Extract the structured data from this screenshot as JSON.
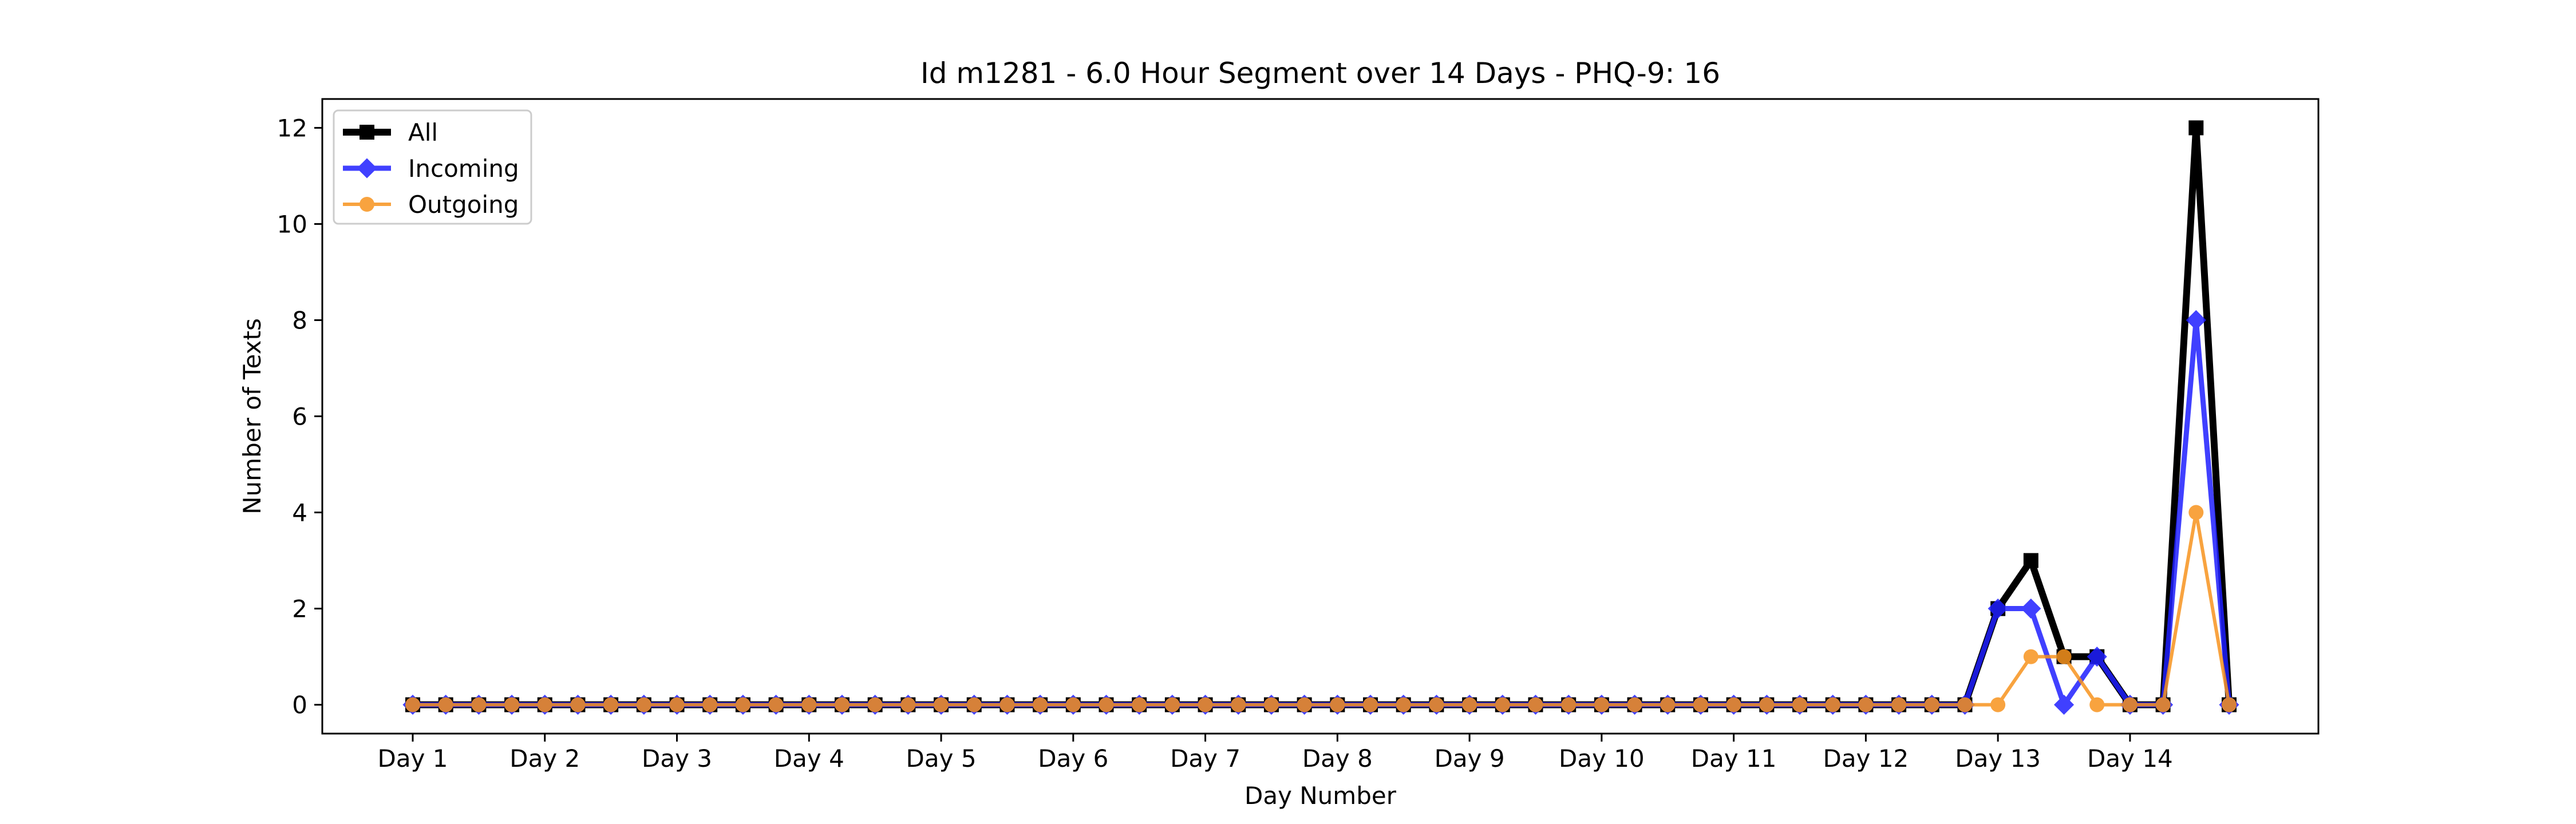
{
  "chart_data": {
    "type": "line",
    "title": "Id m1281 - 6.0 Hour Segment over 14 Days - PHQ-9: 16",
    "xlabel": "Day Number",
    "ylabel": "Number of Texts",
    "x_tick_labels": [
      "Day 1",
      "Day 2",
      "Day 3",
      "Day 4",
      "Day 5",
      "Day 6",
      "Day 7",
      "Day 8",
      "Day 9",
      "Day 10",
      "Day 11",
      "Day 12",
      "Day 13",
      "Day 14"
    ],
    "y_ticks": [
      0,
      2,
      4,
      6,
      8,
      10,
      12
    ],
    "ylim": [
      -0.6,
      12.6
    ],
    "segments_per_day": 4,
    "grid": false,
    "legend_position": "top-left",
    "series": [
      {
        "name": "All",
        "color": "#000000",
        "marker": "square",
        "values": [
          0,
          0,
          0,
          0,
          0,
          0,
          0,
          0,
          0,
          0,
          0,
          0,
          0,
          0,
          0,
          0,
          0,
          0,
          0,
          0,
          0,
          0,
          0,
          0,
          0,
          0,
          0,
          0,
          0,
          0,
          0,
          0,
          0,
          0,
          0,
          0,
          0,
          0,
          0,
          0,
          0,
          0,
          0,
          0,
          0,
          0,
          0,
          0,
          2,
          3,
          1,
          1,
          0,
          0,
          12,
          0
        ]
      },
      {
        "name": "Incoming",
        "color": "#1f1fff",
        "marker": "diamond",
        "values": [
          0,
          0,
          0,
          0,
          0,
          0,
          0,
          0,
          0,
          0,
          0,
          0,
          0,
          0,
          0,
          0,
          0,
          0,
          0,
          0,
          0,
          0,
          0,
          0,
          0,
          0,
          0,
          0,
          0,
          0,
          0,
          0,
          0,
          0,
          0,
          0,
          0,
          0,
          0,
          0,
          0,
          0,
          0,
          0,
          0,
          0,
          0,
          0,
          2,
          2,
          0,
          1,
          0,
          0,
          8,
          0
        ]
      },
      {
        "name": "Outgoing",
        "color": "#f7931e",
        "marker": "circle",
        "values": [
          0,
          0,
          0,
          0,
          0,
          0,
          0,
          0,
          0,
          0,
          0,
          0,
          0,
          0,
          0,
          0,
          0,
          0,
          0,
          0,
          0,
          0,
          0,
          0,
          0,
          0,
          0,
          0,
          0,
          0,
          0,
          0,
          0,
          0,
          0,
          0,
          0,
          0,
          0,
          0,
          0,
          0,
          0,
          0,
          0,
          0,
          0,
          0,
          0,
          1,
          1,
          0,
          0,
          0,
          4,
          0
        ]
      }
    ]
  }
}
